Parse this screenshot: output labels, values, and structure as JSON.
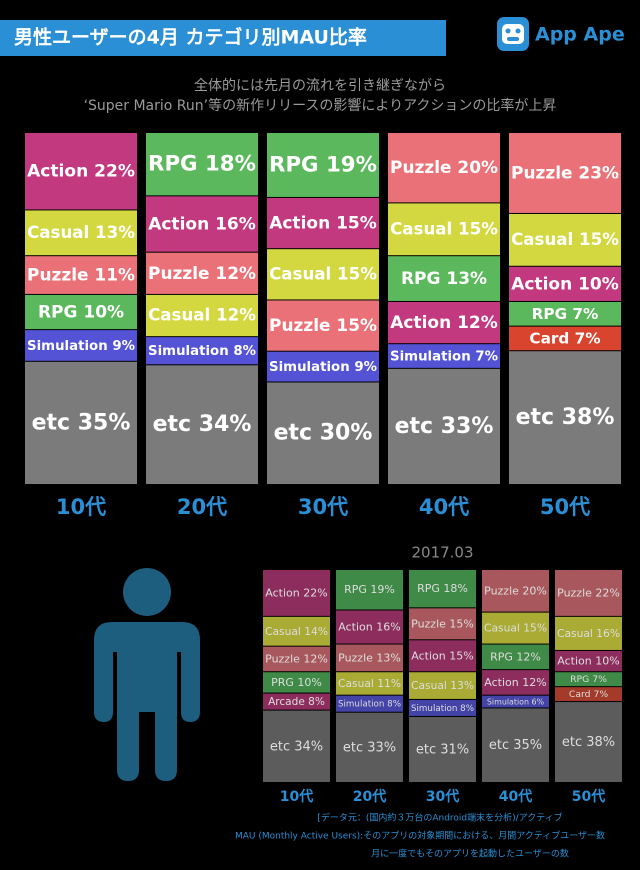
{
  "header": {
    "title": "男性ユーザーの4月 カテゴリ別MAU比率",
    "logo": "App Ape"
  },
  "subtitle": [
    "全体的には先月の流れを引き継ぎながら",
    "‘Super Mario Run’等の新作リリースの影響によりアクションの比率が上昇"
  ],
  "chart_data": [
    {
      "type": "stacked-column",
      "categories": [
        "10代",
        "20代",
        "30代",
        "40代",
        "50代"
      ],
      "stacks": [
        [
          {
            "value": 22,
            "label": "Action 22%",
            "color": "#c2397f"
          },
          {
            "value": 13,
            "label": "Casual 13%",
            "color": "#d4d840"
          },
          {
            "value": 11,
            "label": "Puzzle 11%",
            "color": "#ea7177"
          },
          {
            "value": 10,
            "label": "RPG 10%",
            "color": "#5cb85c"
          },
          {
            "value": 9,
            "label": "Simulation 9%",
            "color": "#5453d6"
          },
          {
            "value": 35,
            "label": "etc 35%",
            "color": "#7b7b7b"
          }
        ],
        [
          {
            "value": 18,
            "label": "RPG 18%",
            "color": "#5cb85c"
          },
          {
            "value": 16,
            "label": "Action 16%",
            "color": "#c2397f"
          },
          {
            "value": 12,
            "label": "Puzzle 12%",
            "color": "#ea7177"
          },
          {
            "value": 12,
            "label": "Casual 12%",
            "color": "#d4d840"
          },
          {
            "value": 8,
            "label": "Simulation 8%",
            "color": "#5453d6"
          },
          {
            "value": 34,
            "label": "etc 34%",
            "color": "#7b7b7b"
          }
        ],
        [
          {
            "value": 19,
            "label": "RPG 19%",
            "color": "#5cb85c"
          },
          {
            "value": 15,
            "label": "Action 15%",
            "color": "#c2397f"
          },
          {
            "value": 15,
            "label": "Casual 15%",
            "color": "#d4d840"
          },
          {
            "value": 15,
            "label": "Puzzle 15%",
            "color": "#ea7177"
          },
          {
            "value": 9,
            "label": "Simulation 9%",
            "color": "#5453d6"
          },
          {
            "value": 30,
            "label": "etc 30%",
            "color": "#7b7b7b"
          }
        ],
        [
          {
            "value": 20,
            "label": "Puzzle 20%",
            "color": "#ea7177"
          },
          {
            "value": 15,
            "label": "Casual 15%",
            "color": "#d4d840"
          },
          {
            "value": 13,
            "label": "RPG 13%",
            "color": "#5cb85c"
          },
          {
            "value": 12,
            "label": "Action 12%",
            "color": "#c2397f"
          },
          {
            "value": 7,
            "label": "Simulation 7%",
            "color": "#5453d6"
          },
          {
            "value": 33,
            "label": "etc 33%",
            "color": "#7b7b7b"
          }
        ],
        [
          {
            "value": 23,
            "label": "Puzzle 23%",
            "color": "#ea7177"
          },
          {
            "value": 15,
            "label": "Casual 15%",
            "color": "#d4d840"
          },
          {
            "value": 10,
            "label": "Action 10%",
            "color": "#c2397f"
          },
          {
            "value": 7,
            "label": "RPG 7%",
            "color": "#5cb85c"
          },
          {
            "value": 7,
            "label": "Card 7%",
            "color": "#d9442f"
          },
          {
            "value": 38,
            "label": "etc 38%",
            "color": "#7b7b7b"
          }
        ]
      ]
    },
    {
      "type": "stacked-column",
      "title": "2017.03",
      "categories": [
        "10代",
        "20代",
        "30代",
        "40代",
        "50代"
      ],
      "stacks": [
        [
          {
            "value": 22,
            "label": "Action 22%",
            "color": "#8c2d5e"
          },
          {
            "value": 14,
            "label": "Casual 14%",
            "color": "#a9ab34"
          },
          {
            "value": 12,
            "label": "Puzzle 12%",
            "color": "#a8585c"
          },
          {
            "value": 10,
            "label": "PRG 10%",
            "color": "#3f8a47"
          },
          {
            "value": 8,
            "label": "Arcade 8%",
            "color": "#8c2d5e"
          },
          {
            "value": 34,
            "label": "etc 34%",
            "color": "#5c5c5c"
          }
        ],
        [
          {
            "value": 19,
            "label": "RPG 19%",
            "color": "#3f8a47"
          },
          {
            "value": 16,
            "label": "Action 16%",
            "color": "#8c2d5e"
          },
          {
            "value": 13,
            "label": "Puzzle 13%",
            "color": "#a8585c"
          },
          {
            "value": 11,
            "label": "Casual 11%",
            "color": "#a9ab34"
          },
          {
            "value": 8,
            "label": "Simulation 8%",
            "color": "#4343a8"
          },
          {
            "value": 33,
            "label": "etc 33%",
            "color": "#5c5c5c"
          }
        ],
        [
          {
            "value": 18,
            "label": "RPG 18%",
            "color": "#3f8a47"
          },
          {
            "value": 15,
            "label": "Puzzle 15%",
            "color": "#a8585c"
          },
          {
            "value": 15,
            "label": "Action 15%",
            "color": "#8c2d5e"
          },
          {
            "value": 13,
            "label": "Casual 13%",
            "color": "#a9ab34"
          },
          {
            "value": 8,
            "label": "Simulation 8%",
            "color": "#4343a8"
          },
          {
            "value": 31,
            "label": "etc 31%",
            "color": "#5c5c5c"
          }
        ],
        [
          {
            "value": 20,
            "label": "Puzzle 20%",
            "color": "#a8585c"
          },
          {
            "value": 15,
            "label": "Casual 15%",
            "color": "#a9ab34"
          },
          {
            "value": 12,
            "label": "RPG 12%",
            "color": "#3f8a47"
          },
          {
            "value": 12,
            "label": "Action 12%",
            "color": "#8c2d5e"
          },
          {
            "value": 6,
            "label": "Simulation 6%",
            "color": "#4343a8"
          },
          {
            "value": 35,
            "label": "etc 35%",
            "color": "#5c5c5c"
          }
        ],
        [
          {
            "value": 22,
            "label": "Puzzle 22%",
            "color": "#a8585c"
          },
          {
            "value": 16,
            "label": "Casual 16%",
            "color": "#a9ab34"
          },
          {
            "value": 10,
            "label": "Action 10%",
            "color": "#8c2d5e"
          },
          {
            "value": 7,
            "label": "RPG 7%",
            "color": "#3f8a47"
          },
          {
            "value": 7,
            "label": "Card 7%",
            "color": "#a33a2a"
          },
          {
            "value": 38,
            "label": "etc 38%",
            "color": "#5c5c5c"
          }
        ]
      ]
    }
  ],
  "footer": [
    "[データ元：(国内約３万台のAndroid端末を分析)/アクティブ",
    "MAU (Monthly Active Users):そのアプリの対象期間における、月間アクティブユーザー数",
    "月に一度でもそのアプリを起動したユーザーの数"
  ]
}
